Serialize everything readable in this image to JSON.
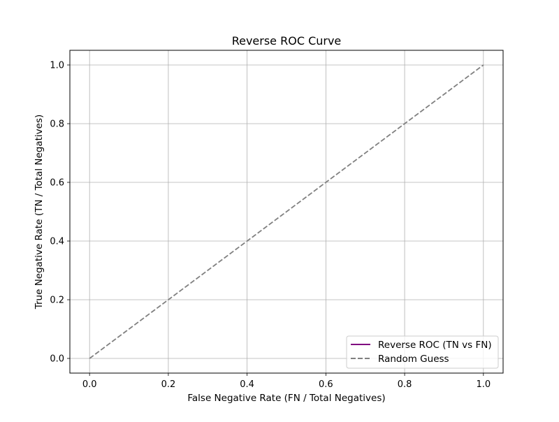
{
  "chart_data": {
    "type": "line",
    "title": "Reverse ROC Curve",
    "xlabel": "False Negative Rate (FN / Total Negatives)",
    "ylabel": "True Negative Rate (TN / Total Negatives)",
    "xlim": [
      -0.05,
      1.05
    ],
    "ylim": [
      -0.05,
      1.05
    ],
    "xticks": [
      0.0,
      0.2,
      0.4,
      0.6,
      0.8,
      1.0
    ],
    "yticks": [
      0.0,
      0.2,
      0.4,
      0.6,
      0.8,
      1.0
    ],
    "xtick_labels": [
      "0.0",
      "0.2",
      "0.4",
      "0.6",
      "0.8",
      "1.0"
    ],
    "ytick_labels": [
      "0.0",
      "0.2",
      "0.4",
      "0.6",
      "0.8",
      "1.0"
    ],
    "grid": true,
    "legend_position": "bottom-right",
    "series": [
      {
        "name": "Reverse ROC (TN vs FN)",
        "color": "#800080",
        "style": "solid",
        "x": [],
        "y": []
      },
      {
        "name": "Random Guess",
        "color": "#808080",
        "style": "dashed",
        "x": [
          0.0,
          1.0
        ],
        "y": [
          0.0,
          1.0
        ]
      }
    ]
  }
}
